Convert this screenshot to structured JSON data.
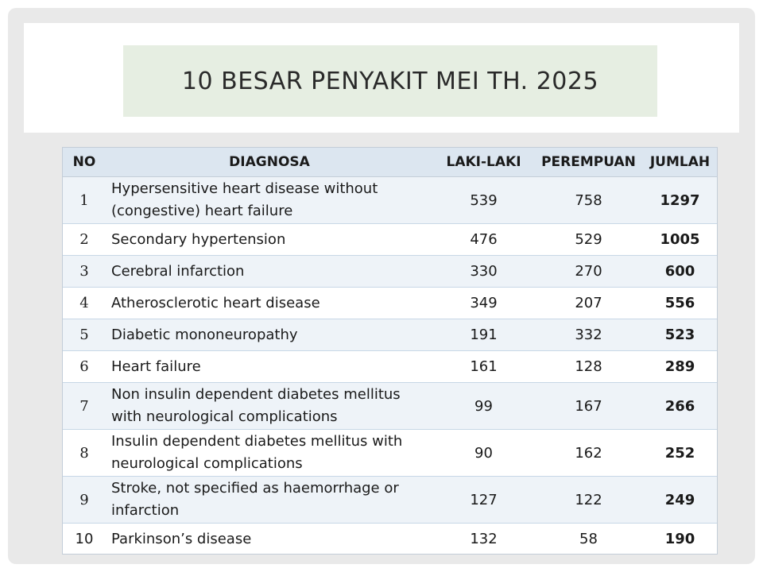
{
  "title": "10 BESAR PENYAKIT MEI TH. 2025",
  "table": {
    "headers": {
      "no": "NO",
      "diagnosa": "DIAGNOSA",
      "laki": "LAKI-LAKI",
      "perempuan": "PEREMPUAN",
      "jumlah": "JUMLAH"
    },
    "rows": [
      {
        "no": "1",
        "diagnosa": "Hypersensitive heart disease without (congestive) heart failure",
        "laki": "539",
        "perempuan": "758",
        "jumlah": "1297"
      },
      {
        "no": "2",
        "diagnosa": "Secondary hypertension",
        "laki": "476",
        "perempuan": "529",
        "jumlah": "1005"
      },
      {
        "no": "3",
        "diagnosa": "Cerebral infarction",
        "laki": "330",
        "perempuan": "270",
        "jumlah": "600"
      },
      {
        "no": "4",
        "diagnosa": "Atherosclerotic heart disease",
        "laki": "349",
        "perempuan": "207",
        "jumlah": "556"
      },
      {
        "no": "5",
        "diagnosa": "Diabetic mononeuropathy",
        "laki": "191",
        "perempuan": "332",
        "jumlah": "523"
      },
      {
        "no": "6",
        "diagnosa": "Heart failure",
        "laki": "161",
        "perempuan": "128",
        "jumlah": "289"
      },
      {
        "no": "7",
        "diagnosa": "Non insulin dependent diabetes mellitus with neurological complications",
        "laki": "99",
        "perempuan": "167",
        "jumlah": "266"
      },
      {
        "no": "8",
        "diagnosa": "Insulin dependent diabetes mellitus with neurological complications",
        "laki": "90",
        "perempuan": "162",
        "jumlah": "252"
      },
      {
        "no": "9",
        "diagnosa": "Stroke, not specified as haemorrhage or infarction",
        "laki": "127",
        "perempuan": "122",
        "jumlah": "249"
      },
      {
        "no": "10",
        "diagnosa": "Parkinson’s disease",
        "laki": "132",
        "perempuan": "58",
        "jumlah": "190"
      }
    ]
  }
}
